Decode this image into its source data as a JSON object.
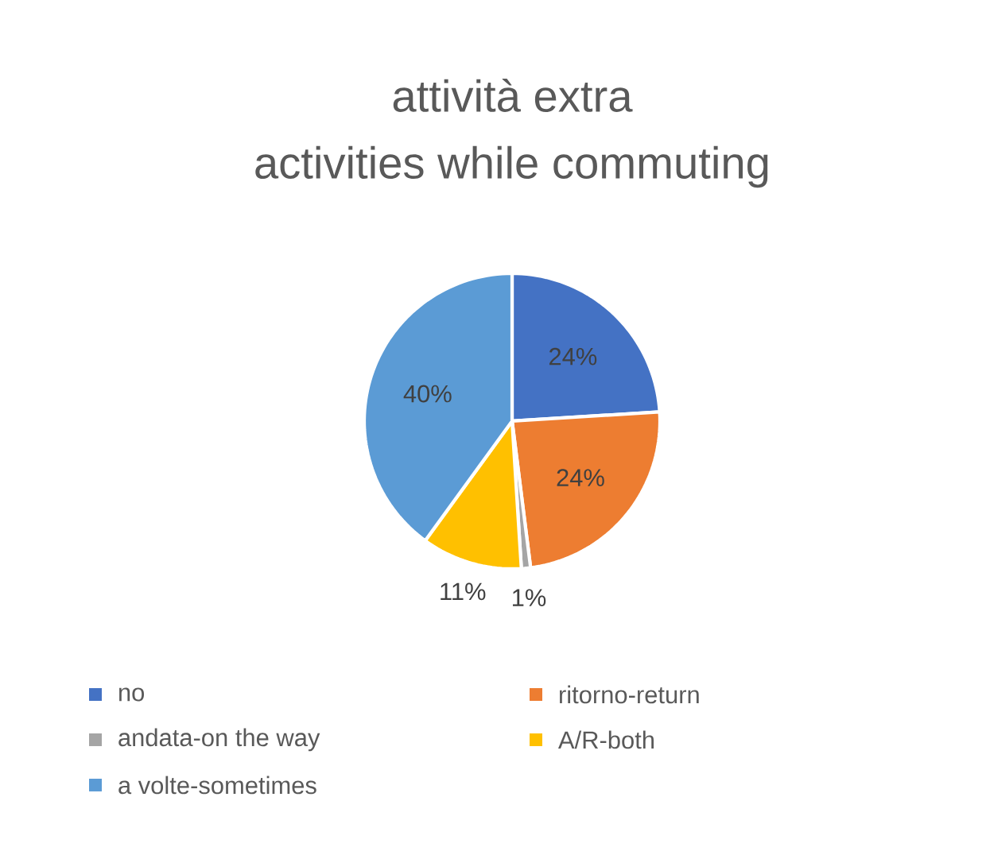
{
  "chart_data": {
    "type": "pie",
    "title": "attività extra",
    "subtitle": "activities while commuting",
    "categories": [
      "no",
      "ritorno-return",
      "andata-on the way",
      "A/R-both",
      "a volte-sometimes"
    ],
    "values": [
      24,
      24,
      1,
      11,
      40
    ],
    "colors": [
      "#4472c4",
      "#ed7d31",
      "#a5a5a5",
      "#ffc000",
      "#5b9bd5"
    ],
    "value_labels": [
      "24%",
      "24%",
      "1%",
      "11%",
      "40%"
    ],
    "legend": "bottom"
  }
}
